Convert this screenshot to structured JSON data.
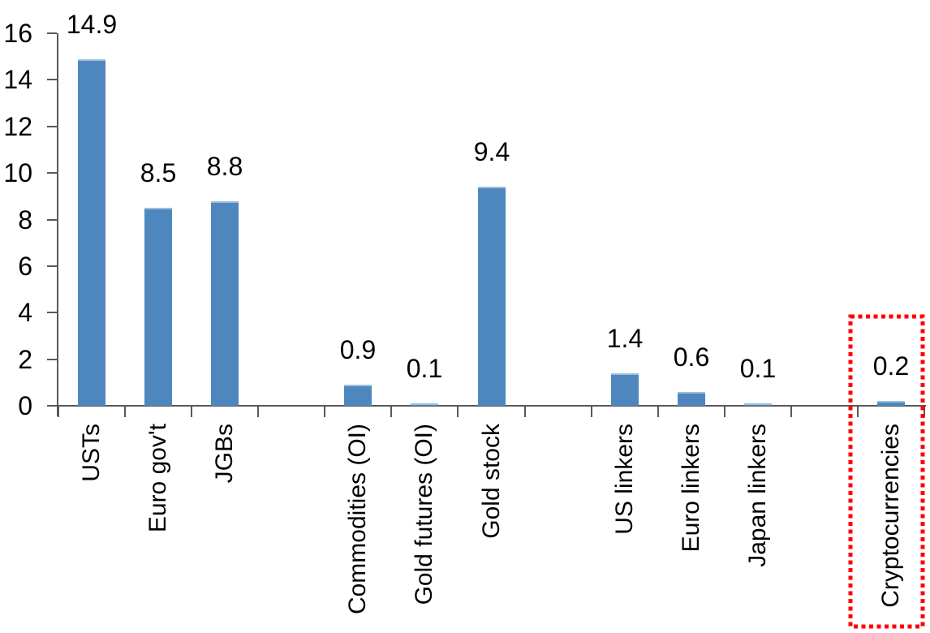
{
  "chart_data": {
    "type": "bar",
    "title": "",
    "xlabel": "",
    "ylabel": "",
    "categories": [
      "USTs",
      "Euro gov't",
      "JGBs",
      "",
      "Commodities (OI)",
      "Gold futures (OI)",
      "Gold stock",
      "",
      "US linkers",
      "Euro linkers",
      "Japan linkers",
      "",
      "Cryptocurrencies"
    ],
    "values": [
      14.9,
      8.5,
      8.8,
      null,
      0.9,
      0.1,
      9.4,
      null,
      1.4,
      0.6,
      0.1,
      null,
      0.2
    ],
    "data_labels": [
      "14.9",
      "8.5",
      "8.8",
      null,
      "0.9",
      "0.1",
      "9.4",
      null,
      "1.4",
      "0.6",
      "0.1",
      null,
      "0.2"
    ],
    "y_tick_labels": [
      "0",
      "2",
      "4",
      "6",
      "8",
      "10",
      "12",
      "14",
      "16"
    ],
    "y_ticks": [
      0,
      2,
      4,
      6,
      8,
      10,
      12,
      14,
      16
    ],
    "ylim": [
      0,
      16
    ],
    "grid": "off",
    "legend": "none",
    "bar_color": "#4e87be",
    "bar_top_edge_color": "#9fbedb",
    "axis_color": "#595959",
    "label_color": "#000000",
    "highlight": {
      "category": "Cryptocurrencies",
      "shape": "dotted-rectangle",
      "color": "#ff0000"
    }
  }
}
